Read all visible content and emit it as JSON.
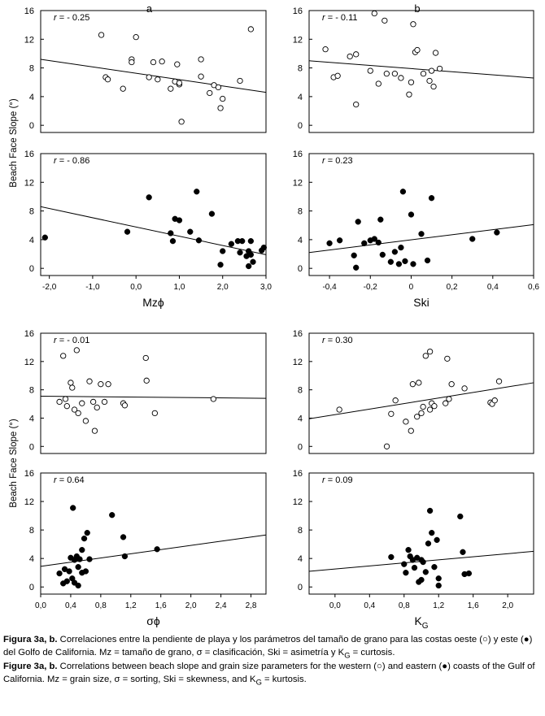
{
  "figure": {
    "y_axis_label": "Beach Face Slope (°)",
    "y_ticks": [
      "0",
      "4",
      "8",
      "12",
      "16"
    ]
  },
  "chart_data": [
    {
      "type": "scatter",
      "id": "mz-west",
      "marker": "open",
      "panel_letter": "a",
      "r_label": "r = - 0.25",
      "xlabel": "",
      "ylabel": "Beach Face Slope (°)",
      "xlim": [
        -2.2,
        3.0
      ],
      "ylim": [
        -1,
        16
      ],
      "x": [
        -0.8,
        -0.7,
        -0.65,
        -0.3,
        -0.1,
        -0.1,
        0.0,
        0.3,
        0.4,
        0.5,
        0.6,
        0.8,
        0.9,
        0.95,
        1.0,
        1.0,
        1.05,
        1.5,
        1.5,
        1.7,
        1.8,
        1.9,
        1.95,
        2.0,
        2.4,
        2.65
      ],
      "y": [
        12.6,
        6.7,
        6.4,
        5.1,
        9.2,
        8.8,
        12.3,
        6.7,
        8.8,
        6.4,
        8.9,
        5.1,
        6.1,
        8.5,
        5.7,
        5.9,
        0.5,
        6.8,
        9.2,
        4.5,
        5.6,
        5.3,
        2.4,
        3.7,
        6.2,
        13.4
      ],
      "trend": {
        "x": [
          -2.2,
          3.0
        ],
        "y": [
          9.2,
          4.6
        ]
      }
    },
    {
      "type": "scatter",
      "id": "ski-west",
      "marker": "open",
      "panel_letter": "b",
      "r_label": "r = - 0.11",
      "xlabel": "",
      "ylabel": "",
      "xlim": [
        -0.5,
        0.6
      ],
      "ylim": [
        -1,
        16
      ],
      "x": [
        -0.42,
        -0.38,
        -0.36,
        -0.3,
        -0.27,
        -0.27,
        -0.2,
        -0.18,
        -0.16,
        -0.13,
        -0.12,
        -0.08,
        -0.05,
        -0.01,
        0.0,
        0.01,
        0.02,
        0.03,
        0.06,
        0.09,
        0.1,
        0.11,
        0.12,
        0.14
      ],
      "y": [
        10.6,
        6.7,
        6.9,
        9.6,
        9.9,
        2.9,
        7.6,
        15.6,
        5.8,
        14.6,
        7.2,
        7.2,
        6.6,
        4.3,
        6.0,
        14.1,
        10.2,
        10.5,
        7.2,
        6.2,
        7.6,
        5.4,
        10.1,
        7.9
      ],
      "trend": {
        "x": [
          -0.5,
          0.6
        ],
        "y": [
          9.0,
          6.6
        ]
      }
    },
    {
      "type": "scatter",
      "id": "mz-east",
      "marker": "filled",
      "r_label": "r = - 0.86",
      "xlabel": "Mzϕ",
      "ylabel": "Beach Face Slope (°)",
      "xlim": [
        -2.2,
        3.0
      ],
      "ylim": [
        -1,
        16
      ],
      "xticks": [
        "-2,0",
        "-1,0",
        "0,0",
        "1,0",
        "2,0",
        "3,0"
      ],
      "x": [
        -2.1,
        -0.2,
        0.3,
        0.8,
        0.85,
        0.9,
        1.0,
        1.25,
        1.4,
        1.45,
        1.75,
        1.95,
        2.0,
        2.2,
        2.35,
        2.4,
        2.45,
        2.55,
        2.6,
        2.6,
        2.65,
        2.65,
        2.7,
        2.9,
        2.95
      ],
      "y": [
        4.3,
        5.1,
        9.9,
        4.9,
        3.8,
        6.9,
        6.7,
        5.1,
        10.7,
        3.9,
        7.6,
        0.5,
        2.4,
        3.4,
        3.8,
        2.2,
        3.8,
        1.7,
        2.4,
        0.3,
        3.8,
        1.9,
        0.9,
        2.5,
        2.9
      ],
      "trend": {
        "x": [
          -2.2,
          3.0
        ],
        "y": [
          8.6,
          1.9
        ]
      }
    },
    {
      "type": "scatter",
      "id": "ski-east",
      "marker": "filled",
      "r_label": "r = 0.23",
      "xlabel": "Ski",
      "ylabel": "",
      "xlim": [
        -0.5,
        0.6
      ],
      "ylim": [
        -1,
        16
      ],
      "xticks": [
        "-0,4",
        "-0,2",
        "0",
        "0,2",
        "0,4",
        "0,6"
      ],
      "x": [
        -0.4,
        -0.35,
        -0.28,
        -0.27,
        -0.26,
        -0.23,
        -0.2,
        -0.18,
        -0.16,
        -0.15,
        -0.14,
        -0.1,
        -0.08,
        -0.06,
        -0.05,
        -0.04,
        -0.03,
        0.0,
        0.01,
        0.05,
        0.08,
        0.1,
        0.3,
        0.42
      ],
      "y": [
        3.5,
        3.9,
        1.8,
        0.1,
        6.5,
        3.5,
        3.9,
        4.1,
        3.6,
        6.8,
        1.9,
        0.9,
        2.3,
        0.6,
        2.9,
        10.7,
        1.0,
        7.5,
        0.6,
        4.8,
        1.1,
        9.8,
        4.1,
        5.0
      ],
      "trend": {
        "x": [
          -0.5,
          0.6
        ],
        "y": [
          2.2,
          6.1
        ]
      }
    },
    {
      "type": "scatter",
      "id": "sorting-west",
      "marker": "open",
      "r_label": "r = - 0.01",
      "xlabel": "",
      "ylabel": "Beach Face Slope (°)",
      "xlim": [
        0.0,
        3.0
      ],
      "ylim": [
        -1,
        16
      ],
      "x": [
        0.25,
        0.3,
        0.33,
        0.35,
        0.4,
        0.42,
        0.45,
        0.48,
        0.5,
        0.55,
        0.6,
        0.65,
        0.7,
        0.72,
        0.75,
        0.8,
        0.85,
        0.9,
        1.1,
        1.12,
        1.4,
        1.41,
        1.52,
        2.3
      ],
      "y": [
        6.3,
        12.8,
        6.7,
        5.7,
        9.0,
        8.3,
        5.2,
        13.6,
        4.7,
        6.1,
        3.6,
        9.2,
        6.3,
        2.2,
        5.5,
        8.8,
        6.3,
        8.8,
        6.1,
        5.8,
        12.5,
        9.3,
        4.7,
        6.7
      ],
      "trend": {
        "x": [
          0.0,
          3.0
        ],
        "y": [
          7.1,
          6.8
        ]
      }
    },
    {
      "type": "scatter",
      "id": "kurtosis-west",
      "marker": "open",
      "r_label": "r = 0.30",
      "xlabel": "",
      "ylabel": "",
      "xlim": [
        -0.3,
        2.3
      ],
      "ylim": [
        -1,
        16
      ],
      "x": [
        0.05,
        0.6,
        0.65,
        0.7,
        0.82,
        0.88,
        0.9,
        0.95,
        0.97,
        1.0,
        1.02,
        1.05,
        1.1,
        1.1,
        1.12,
        1.15,
        1.28,
        1.3,
        1.32,
        1.35,
        1.5,
        1.8,
        1.82,
        1.85,
        1.9
      ],
      "y": [
        5.2,
        0.0,
        4.6,
        6.5,
        3.5,
        2.2,
        8.8,
        4.2,
        9.0,
        4.7,
        5.6,
        12.8,
        13.4,
        5.2,
        6.1,
        5.7,
        6.1,
        12.4,
        6.7,
        8.8,
        8.2,
        6.2,
        6.0,
        6.5,
        9.2
      ],
      "trend": {
        "x": [
          -0.3,
          2.3
        ],
        "y": [
          3.9,
          9.0
        ]
      }
    },
    {
      "type": "scatter",
      "id": "sorting-east",
      "marker": "filled",
      "r_label": "r = 0.64",
      "xlabel": "σϕ",
      "ylabel": "Beach Face Slope (°)",
      "xlim": [
        0.0,
        3.0
      ],
      "ylim": [
        -1,
        16
      ],
      "xticks": [
        "0,0",
        "0,4",
        "0,8",
        "1,2",
        "1,6",
        "2,0",
        "2,4",
        "2,8"
      ],
      "x": [
        0.25,
        0.3,
        0.32,
        0.35,
        0.38,
        0.4,
        0.42,
        0.43,
        0.45,
        0.45,
        0.48,
        0.5,
        0.5,
        0.52,
        0.55,
        0.55,
        0.58,
        0.6,
        0.62,
        0.65,
        0.95,
        1.1,
        1.12,
        1.55
      ],
      "y": [
        1.9,
        0.5,
        2.5,
        0.8,
        2.2,
        4.1,
        1.2,
        11.1,
        3.8,
        0.6,
        4.3,
        2.8,
        0.2,
        3.9,
        5.2,
        2.0,
        6.8,
        2.2,
        7.6,
        3.9,
        10.1,
        7.0,
        4.3,
        5.3
      ],
      "trend": {
        "x": [
          0.0,
          3.0
        ],
        "y": [
          2.9,
          7.3
        ]
      }
    },
    {
      "type": "scatter",
      "id": "kurtosis-east",
      "marker": "filled",
      "r_label": "r = 0.09",
      "xlabel": "K_G",
      "ylabel": "",
      "xlim": [
        -0.3,
        2.3
      ],
      "ylim": [
        -1,
        16
      ],
      "xticks": [
        "0,0",
        "0,4",
        "0,8",
        "1,2",
        "1,6",
        "2,0"
      ],
      "x": [
        0.65,
        0.8,
        0.82,
        0.85,
        0.87,
        0.9,
        0.92,
        0.95,
        0.97,
        1.0,
        1.0,
        1.02,
        1.05,
        1.08,
        1.1,
        1.12,
        1.15,
        1.18,
        1.2,
        1.2,
        1.45,
        1.48,
        1.5,
        1.55
      ],
      "y": [
        4.2,
        3.2,
        2.0,
        5.2,
        4.3,
        3.8,
        2.7,
        4.1,
        0.7,
        1.0,
        3.8,
        3.5,
        2.1,
        6.1,
        10.7,
        7.6,
        2.8,
        6.6,
        1.2,
        0.2,
        9.9,
        4.9,
        1.8,
        1.9
      ],
      "trend": {
        "x": [
          -0.3,
          2.3
        ],
        "y": [
          2.2,
          5.0
        ]
      }
    }
  ],
  "caption": {
    "es_prefix": "Figura 3a, b.",
    "es_text": " Correlaciones entre la pendiente de playa y los parámetros del tamaño de grano para las costas oeste (○) y este (●) del Golfo de California. Mz = tamaño de grano, σ = clasificación, Ski = asimetría y K",
    "es_sub": "G",
    "es_end": " = curtosis.",
    "en_prefix": "Figure 3a, b.",
    "en_text": " Correlations between beach slope and grain size parameters for the western (○) and eastern (●) coasts of the Gulf of California. Mz = grain size, σ = sorting, Ski = skewness, and K",
    "en_sub": "G",
    "en_end": " = kurtosis."
  }
}
